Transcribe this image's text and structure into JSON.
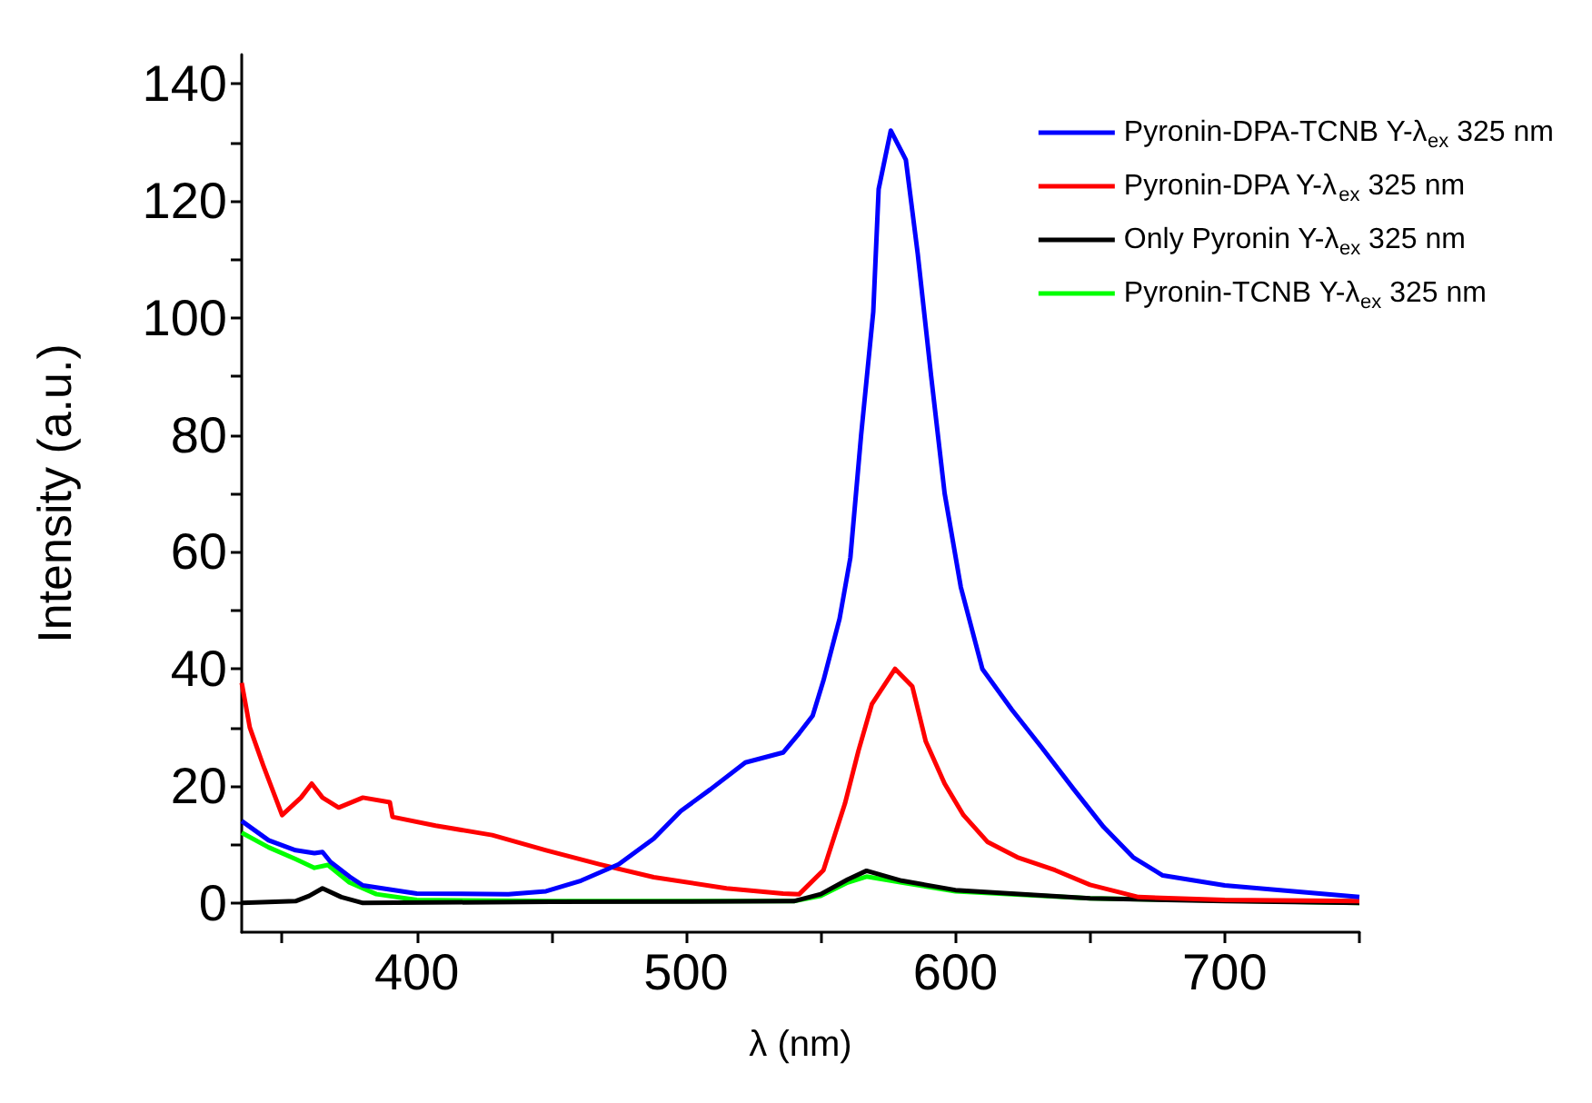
{
  "chart_data": {
    "type": "line",
    "xlabel": "λ (nm)",
    "ylabel": "Intensity (a.u.)",
    "xlim": [
      335,
      750
    ],
    "ylim": [
      -5,
      145
    ],
    "xticks": [
      {
        "value": 350,
        "label": null
      },
      400,
      {
        "value": 450,
        "label": null
      },
      500,
      {
        "value": 550,
        "label": null
      },
      600,
      {
        "value": 650,
        "label": null
      },
      700,
      {
        "value": 750,
        "label": null
      }
    ],
    "yticks": [
      0,
      {
        "value": 10,
        "label": null
      },
      20,
      {
        "value": 30,
        "label": null
      },
      40,
      {
        "value": 50,
        "label": null
      },
      60,
      {
        "value": 70,
        "label": null
      },
      80,
      {
        "value": 90,
        "label": null
      },
      100,
      {
        "value": 110,
        "label": null
      },
      120,
      {
        "value": 130,
        "label": null
      },
      140
    ],
    "grid": false,
    "legend": "top right",
    "marker": "none",
    "line_style": "solid",
    "series": [
      {
        "name": "Pyronin-DPA-TCNB Y-λ$_{ex}$ 325 nm",
        "color": "#0000ff",
        "x": [
          335,
          345,
          355,
          362,
          365,
          368,
          375,
          380,
          400,
          434,
          448,
          461,
          475,
          488,
          498,
          509,
          522,
          536,
          542,
          547,
          551,
          557,
          561,
          565,
          569.5,
          571.5,
          576,
          581.6,
          586,
          591,
          596,
          602,
          610,
          621,
          632,
          644,
          655,
          666,
          677,
          700,
          750
        ],
        "values": [
          14,
          10.7,
          9,
          8.5,
          8.7,
          7,
          4.5,
          3,
          1.6,
          1.5,
          2,
          3.8,
          6.6,
          11,
          15.7,
          19.4,
          24,
          25.7,
          29,
          32,
          38,
          48.6,
          59,
          80,
          101,
          122,
          132,
          127,
          111,
          90,
          70,
          54,
          40,
          33,
          26.6,
          19.4,
          13,
          7.8,
          4.7,
          3,
          1
        ]
      },
      {
        "name": "Pyronin-DPA Y-λ$_{ex}$ 325 nm",
        "color": "#ff0000",
        "x": [
          335,
          338,
          343,
          350,
          357,
          361,
          365,
          371,
          380,
          390,
          391,
          407,
          428,
          448,
          468,
          488,
          515,
          536,
          542,
          551,
          559,
          564,
          569,
          577.6,
          584,
          589,
          596,
          603,
          612,
          623,
          637,
          650,
          668,
          700,
          750
        ],
        "values": [
          37.6,
          30,
          23.5,
          15,
          18,
          20.4,
          18,
          16.3,
          18,
          17.2,
          14.7,
          13.2,
          11.6,
          9,
          6.6,
          4.4,
          2.5,
          1.6,
          1.5,
          5.6,
          17,
          26,
          34,
          40,
          37,
          27.6,
          20.4,
          15,
          10.4,
          7.8,
          5.6,
          3.1,
          1,
          0.5,
          0.3
        ]
      },
      {
        "name": "Only Pyronin Y-λ$_{ex}$ 325 nm",
        "color": "#000000",
        "x": [
          335,
          355,
          360,
          365,
          372,
          380,
          450,
          540,
          550,
          560,
          567,
          580,
          600,
          650,
          700,
          750
        ],
        "values": [
          0,
          0.3,
          1.2,
          2.5,
          1,
          0,
          0.2,
          0.3,
          1.5,
          4,
          5.5,
          3.8,
          2.2,
          0.8,
          0.3,
          0
        ]
      },
      {
        "name": "Pyronin-TCNB Y-λ$_{ex}$ 325 nm",
        "color": "#00ff00",
        "x": [
          335,
          345,
          355,
          362,
          367,
          375,
          385,
          400,
          450,
          540,
          550,
          560,
          567,
          580,
          600,
          650,
          750
        ],
        "values": [
          12,
          9.5,
          7.5,
          6,
          6.5,
          3.5,
          1.5,
          0.5,
          0.3,
          0.3,
          1.2,
          3.5,
          4.5,
          3.5,
          2,
          0.8,
          0
        ]
      }
    ]
  }
}
